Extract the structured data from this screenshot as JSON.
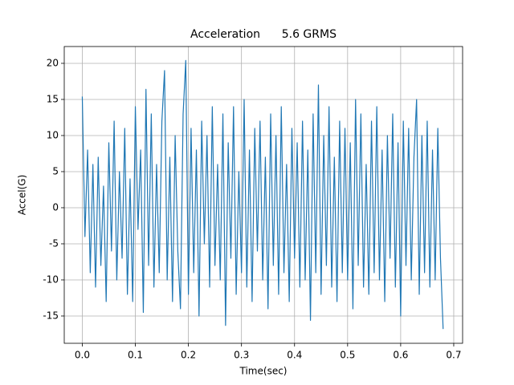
{
  "chart_data": {
    "type": "line",
    "title": "Acceleration      5.6 GRMS",
    "xlabel": "Time(sec)",
    "ylabel": "Accel(G)",
    "color": "#1f77b4",
    "grid": true,
    "xlim": [
      -0.034,
      0.7167
    ],
    "ylim": [
      -18.78,
      22.33
    ],
    "xticks": [
      {
        "value": 0,
        "label": "0.0"
      },
      0.1,
      0.2,
      0.3,
      0.4,
      0.5,
      0.6,
      0.7
    ],
    "yticks": [
      -15,
      -10,
      -5,
      0,
      5,
      10,
      15,
      20
    ],
    "x": [
      0,
      0.005,
      0.01,
      0.015,
      0.02,
      0.025,
      0.03,
      0.035,
      0.04,
      0.045,
      0.05,
      0.055,
      0.06,
      0.065,
      0.07,
      0.075,
      0.08,
      0.085,
      0.09,
      0.095,
      0.1,
      0.105,
      0.11,
      0.115,
      0.12,
      0.125,
      0.13,
      0.135,
      0.14,
      0.145,
      0.15,
      0.155,
      0.16,
      0.165,
      0.17,
      0.175,
      0.18,
      0.185,
      0.19,
      0.195,
      0.2,
      0.205,
      0.21,
      0.215,
      0.22,
      0.225,
      0.23,
      0.235,
      0.24,
      0.245,
      0.25,
      0.255,
      0.26,
      0.265,
      0.27,
      0.275,
      0.28,
      0.285,
      0.29,
      0.295,
      0.3,
      0.305,
      0.31,
      0.315,
      0.32,
      0.325,
      0.33,
      0.335,
      0.34,
      0.345,
      0.35,
      0.355,
      0.36,
      0.365,
      0.37,
      0.375,
      0.38,
      0.385,
      0.39,
      0.395,
      0.4,
      0.405,
      0.41,
      0.415,
      0.42,
      0.425,
      0.43,
      0.435,
      0.44,
      0.445,
      0.45,
      0.455,
      0.46,
      0.465,
      0.47,
      0.475,
      0.48,
      0.485,
      0.49,
      0.495,
      0.5,
      0.505,
      0.51,
      0.515,
      0.52,
      0.525,
      0.53,
      0.535,
      0.54,
      0.545,
      0.55,
      0.555,
      0.56,
      0.565,
      0.57,
      0.575,
      0.58,
      0.585,
      0.59,
      0.595,
      0.6,
      0.605,
      0.61,
      0.615,
      0.62,
      0.625,
      0.63,
      0.635,
      0.64,
      0.645,
      0.65,
      0.655,
      0.66,
      0.665,
      0.67,
      0.675,
      0.68
    ],
    "values": [
      15.4,
      -4,
      8,
      -9,
      6,
      -11,
      7,
      -8,
      3,
      -13,
      9,
      -6,
      12,
      -10,
      5,
      -7,
      11,
      -12,
      4,
      -13,
      14,
      -3,
      8,
      -14.5,
      16.4,
      -8,
      13,
      -11,
      6,
      -9,
      12,
      19,
      -10,
      7,
      -13,
      10,
      -6,
      -14,
      13,
      20.4,
      -12,
      11,
      -9,
      8,
      -15,
      12,
      -5,
      10,
      -11,
      14,
      -8,
      6,
      -10,
      13,
      -16.3,
      9,
      -7,
      14,
      -12,
      5,
      -9,
      15,
      -11,
      8,
      -13,
      11,
      -6,
      12,
      -10,
      7,
      -14,
      13,
      -8,
      10,
      -12,
      14,
      -9,
      6,
      -13,
      11,
      -7,
      9,
      -11,
      12,
      -10,
      8,
      -15.6,
      13,
      -9,
      17,
      -12,
      10,
      -8,
      14,
      -11,
      7,
      -13,
      12,
      -9,
      11,
      -10,
      9,
      -14,
      15,
      -8,
      13,
      -11,
      6,
      -12,
      12,
      -9,
      14,
      -10,
      8,
      -13,
      10,
      -7,
      13,
      -11,
      9,
      -15,
      12,
      -8,
      11,
      -10,
      7,
      15,
      -12,
      10,
      -9,
      12,
      -11,
      8,
      -10,
      11,
      -7,
      -16.8
    ]
  }
}
